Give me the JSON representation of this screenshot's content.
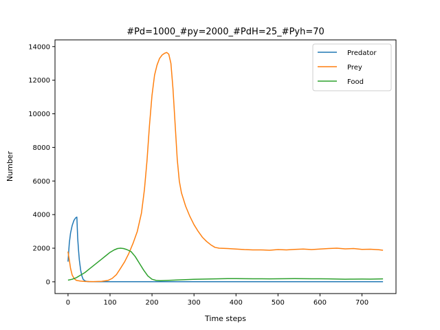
{
  "chart_data": {
    "type": "line",
    "title": "#Pd=1000_#py=2000_#PdH=25_#Pyh=70",
    "xlabel": "Time steps",
    "ylabel": "Number",
    "xlim": [
      -31,
      781
    ],
    "ylim": [
      -700,
      14400
    ],
    "xticks": [
      0,
      100,
      200,
      300,
      400,
      500,
      600,
      700
    ],
    "yticks": [
      0,
      2000,
      4000,
      6000,
      8000,
      10000,
      12000,
      14000
    ],
    "grid": false,
    "legend_position": "top-right",
    "series": [
      {
        "name": "Predator",
        "color": "#1f77b4",
        "points": [
          [
            0,
            1200
          ],
          [
            3,
            2300
          ],
          [
            6,
            2900
          ],
          [
            10,
            3350
          ],
          [
            14,
            3650
          ],
          [
            18,
            3800
          ],
          [
            21,
            3850
          ],
          [
            23,
            2600
          ],
          [
            25,
            1900
          ],
          [
            27,
            1300
          ],
          [
            30,
            700
          ],
          [
            33,
            350
          ],
          [
            36,
            150
          ],
          [
            40,
            60
          ],
          [
            45,
            20
          ],
          [
            50,
            10
          ],
          [
            60,
            5
          ],
          [
            100,
            3
          ],
          [
            200,
            2
          ],
          [
            300,
            2
          ],
          [
            400,
            2
          ],
          [
            500,
            2
          ],
          [
            600,
            2
          ],
          [
            700,
            2
          ],
          [
            750,
            2
          ]
        ]
      },
      {
        "name": "Prey",
        "color": "#ff7f0e",
        "points": [
          [
            0,
            1800
          ],
          [
            3,
            1300
          ],
          [
            6,
            800
          ],
          [
            10,
            400
          ],
          [
            15,
            180
          ],
          [
            20,
            80
          ],
          [
            30,
            40
          ],
          [
            40,
            20
          ],
          [
            60,
            10
          ],
          [
            80,
            30
          ],
          [
            95,
            80
          ],
          [
            105,
            200
          ],
          [
            115,
            420
          ],
          [
            125,
            800
          ],
          [
            135,
            1200
          ],
          [
            145,
            1700
          ],
          [
            155,
            2300
          ],
          [
            165,
            3000
          ],
          [
            175,
            4100
          ],
          [
            182,
            5500
          ],
          [
            188,
            7200
          ],
          [
            194,
            9300
          ],
          [
            200,
            11100
          ],
          [
            206,
            12300
          ],
          [
            212,
            12900
          ],
          [
            218,
            13300
          ],
          [
            224,
            13500
          ],
          [
            230,
            13600
          ],
          [
            235,
            13650
          ],
          [
            240,
            13550
          ],
          [
            245,
            13000
          ],
          [
            250,
            11500
          ],
          [
            255,
            9400
          ],
          [
            260,
            7300
          ],
          [
            265,
            6000
          ],
          [
            270,
            5300
          ],
          [
            280,
            4500
          ],
          [
            290,
            3900
          ],
          [
            300,
            3400
          ],
          [
            310,
            3000
          ],
          [
            320,
            2650
          ],
          [
            330,
            2400
          ],
          [
            340,
            2200
          ],
          [
            350,
            2050
          ],
          [
            360,
            2000
          ],
          [
            380,
            1980
          ],
          [
            400,
            1950
          ],
          [
            420,
            1920
          ],
          [
            440,
            1900
          ],
          [
            460,
            1900
          ],
          [
            480,
            1880
          ],
          [
            500,
            1920
          ],
          [
            520,
            1900
          ],
          [
            540,
            1930
          ],
          [
            560,
            1950
          ],
          [
            580,
            1920
          ],
          [
            600,
            1950
          ],
          [
            620,
            1980
          ],
          [
            640,
            2000
          ],
          [
            660,
            1960
          ],
          [
            680,
            1980
          ],
          [
            700,
            1930
          ],
          [
            720,
            1940
          ],
          [
            740,
            1910
          ],
          [
            750,
            1880
          ]
        ]
      },
      {
        "name": "Food",
        "color": "#2ca02c",
        "points": [
          [
            0,
            100
          ],
          [
            10,
            150
          ],
          [
            20,
            250
          ],
          [
            30,
            400
          ],
          [
            40,
            550
          ],
          [
            50,
            750
          ],
          [
            60,
            950
          ],
          [
            70,
            1150
          ],
          [
            80,
            1350
          ],
          [
            90,
            1550
          ],
          [
            100,
            1750
          ],
          [
            110,
            1900
          ],
          [
            118,
            1980
          ],
          [
            125,
            2000
          ],
          [
            132,
            1980
          ],
          [
            140,
            1920
          ],
          [
            150,
            1800
          ],
          [
            160,
            1500
          ],
          [
            170,
            1100
          ],
          [
            180,
            700
          ],
          [
            190,
            350
          ],
          [
            200,
            150
          ],
          [
            210,
            80
          ],
          [
            220,
            70
          ],
          [
            240,
            90
          ],
          [
            260,
            110
          ],
          [
            280,
            130
          ],
          [
            300,
            150
          ],
          [
            320,
            160
          ],
          [
            340,
            170
          ],
          [
            360,
            180
          ],
          [
            380,
            190
          ],
          [
            400,
            190
          ],
          [
            420,
            185
          ],
          [
            440,
            180
          ],
          [
            460,
            180
          ],
          [
            480,
            175
          ],
          [
            500,
            180
          ],
          [
            520,
            185
          ],
          [
            540,
            190
          ],
          [
            560,
            185
          ],
          [
            580,
            180
          ],
          [
            600,
            180
          ],
          [
            620,
            175
          ],
          [
            640,
            165
          ],
          [
            660,
            155
          ],
          [
            680,
            160
          ],
          [
            700,
            165
          ],
          [
            720,
            160
          ],
          [
            740,
            170
          ],
          [
            750,
            175
          ]
        ]
      }
    ]
  }
}
